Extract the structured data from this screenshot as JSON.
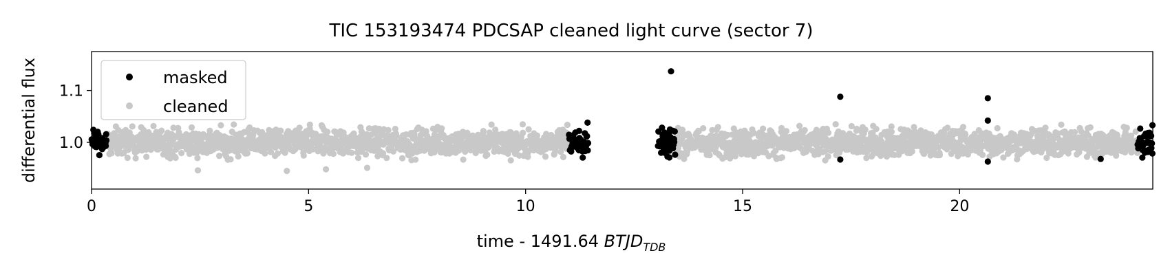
{
  "chart_data": {
    "type": "scatter",
    "title": "TIC 153193474 PDCSAP cleaned light curve (sector 7)",
    "xlabel": "time - 1491.64",
    "xlabel_math": "BTJD",
    "xlabel_math_sub": "TDB",
    "ylabel": "differential flux",
    "xlim": [
      0,
      24.45
    ],
    "ylim": [
      0.91,
      1.175
    ],
    "xticks": [
      0,
      5,
      10,
      15,
      20
    ],
    "xtick_labels": [
      "0",
      "5",
      "10",
      "15",
      "20"
    ],
    "yticks": [
      1.0,
      1.1
    ],
    "ytick_labels": [
      "1.0",
      "1.1"
    ],
    "grid": false,
    "legend_position": "top-left",
    "series": [
      {
        "name": "masked",
        "color": "#000000",
        "segments": [
          {
            "x_range": [
              0.0,
              0.35
            ],
            "y_center": 1.0,
            "y_spread": 0.028
          },
          {
            "x_range": [
              11.0,
              11.45
            ],
            "y_center": 1.0,
            "y_spread": 0.04
          },
          {
            "x_range": [
              13.05,
              13.45
            ],
            "y_center": 1.0,
            "y_spread": 0.035
          },
          {
            "x_range": [
              24.1,
              24.45
            ],
            "y_center": 1.0,
            "y_spread": 0.035
          }
        ],
        "outliers": [
          {
            "x": 13.35,
            "y": 1.137
          },
          {
            "x": 17.25,
            "y": 1.088
          },
          {
            "x": 20.65,
            "y": 1.085
          },
          {
            "x": 20.65,
            "y": 1.042
          },
          {
            "x": 20.65,
            "y": 0.963
          },
          {
            "x": 17.25,
            "y": 0.967
          },
          {
            "x": 23.25,
            "y": 0.968
          }
        ]
      },
      {
        "name": "cleaned",
        "color": "#c8c8c8",
        "segments": [
          {
            "x_range": [
              0.35,
              11.0
            ],
            "y_center": 1.0,
            "y_spread": 0.035
          },
          {
            "x_range": [
              13.45,
              24.1
            ],
            "y_center": 1.0,
            "y_spread": 0.035
          }
        ],
        "outliers": [
          {
            "x": 2.45,
            "y": 0.946
          },
          {
            "x": 4.5,
            "y": 0.945
          },
          {
            "x": 5.4,
            "y": 0.948
          },
          {
            "x": 6.35,
            "y": 0.951
          }
        ]
      }
    ]
  }
}
